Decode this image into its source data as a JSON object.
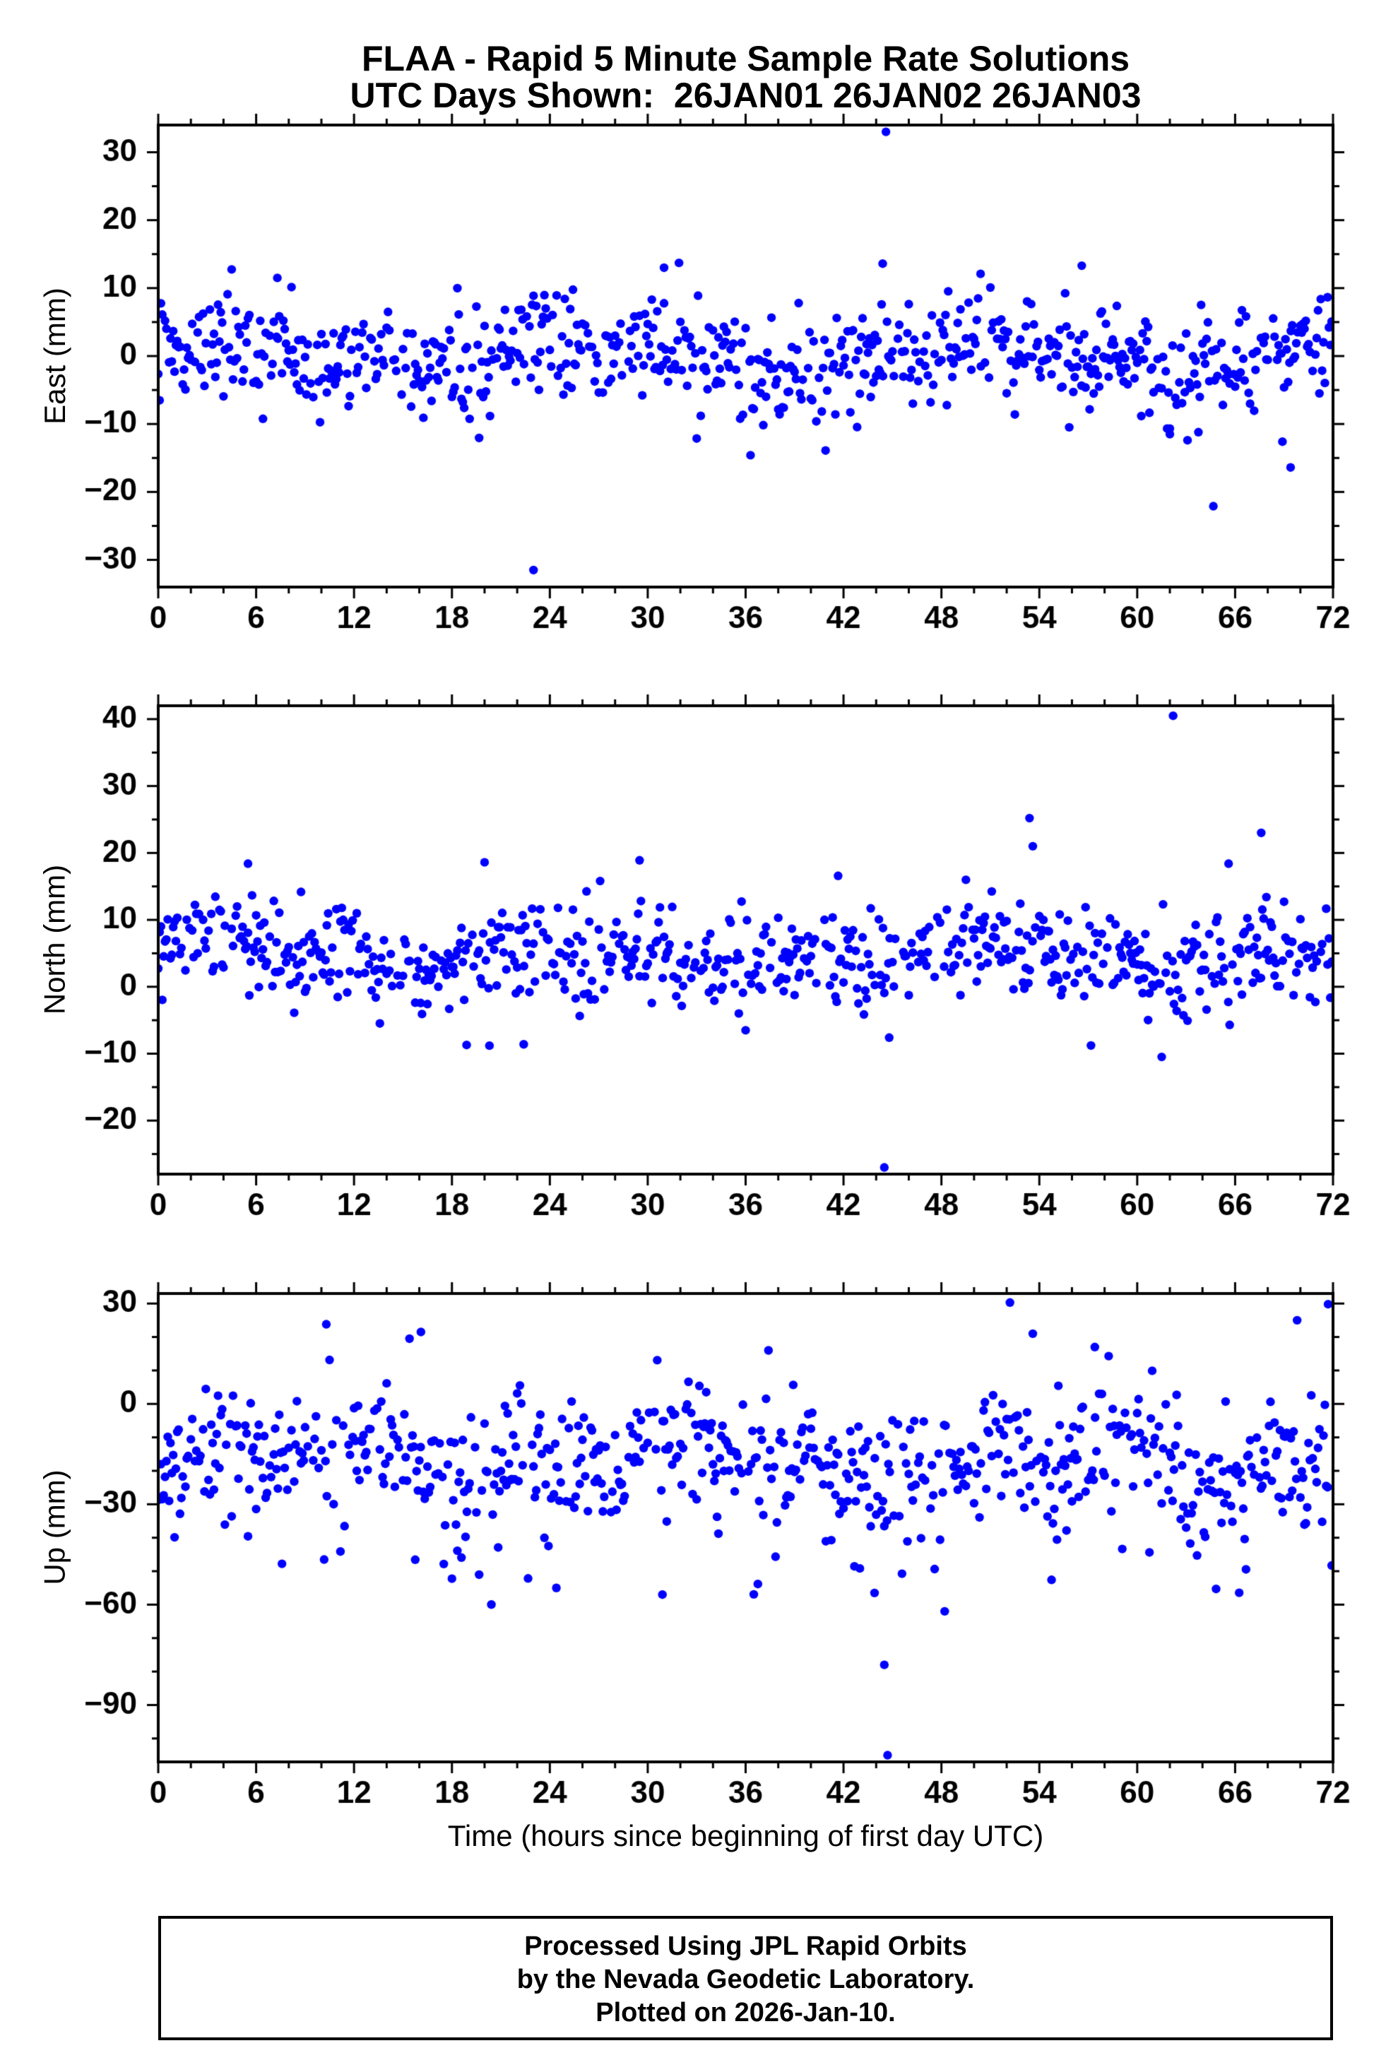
{
  "header": {
    "title_line1": "FLAA - Rapid 5 Minute Sample Rate Solutions",
    "title_line2": "UTC Days Shown:  26JAN01 26JAN02 26JAN03"
  },
  "xlabel": "Time (hours since beginning of first day UTC)",
  "footer": {
    "line1": "Processed Using JPL Rapid Orbits",
    "line2": "by the Nevada Geodetic Laboratory.",
    "line3": "Plotted on 2026-Jan-10."
  },
  "style": {
    "point_color": "#0000ff",
    "axis_color": "#000000",
    "background": "#ffffff"
  },
  "chart_data": [
    {
      "type": "scatter",
      "name": "east",
      "ylabel": "East (mm)",
      "xlabel": "",
      "xlim": [
        0,
        72
      ],
      "ylim": [
        -34,
        34
      ],
      "x_major_ticks": [
        0,
        6,
        12,
        18,
        24,
        30,
        36,
        42,
        48,
        54,
        60,
        66,
        72
      ],
      "x_minor_step": 2,
      "y_major_ticks": [
        -30,
        -20,
        -10,
        0,
        10,
        20,
        30
      ],
      "y_minor_step": 5,
      "grid": false,
      "legend": false,
      "points_model": {
        "seed": 101,
        "n": 864,
        "x_start": 0,
        "x_step": 0.0833333,
        "drop_prob": 0.2,
        "mean": 0,
        "std": 3.9,
        "wander_amp": 1.7,
        "tail_prob": 0.02,
        "tail_shift": 0,
        "tail_std": 7
      },
      "outliers": [
        [
          44.6,
          33.0
        ],
        [
          23.0,
          -31.5
        ],
        [
          44.4,
          13.6
        ],
        [
          31.0,
          13.0
        ],
        [
          56.6,
          13.3
        ],
        [
          36.3,
          -14.6
        ],
        [
          40.9,
          -13.9
        ],
        [
          69.4,
          -16.4
        ],
        [
          68.9,
          -12.6
        ],
        [
          62.0,
          -11.5
        ],
        [
          7.3,
          11.5
        ],
        [
          50.4,
          12.1
        ]
      ]
    },
    {
      "type": "scatter",
      "name": "north",
      "ylabel": "North (mm)",
      "xlabel": "",
      "xlim": [
        0,
        72
      ],
      "ylim": [
        -28,
        42
      ],
      "x_major_ticks": [
        0,
        6,
        12,
        18,
        24,
        30,
        36,
        42,
        48,
        54,
        60,
        66,
        72
      ],
      "x_minor_step": 2,
      "y_major_ticks": [
        -20,
        -10,
        0,
        10,
        20,
        30,
        40
      ],
      "y_minor_step": 5,
      "grid": false,
      "legend": false,
      "points_model": {
        "seed": 202,
        "n": 864,
        "x_start": 0,
        "x_step": 0.0833333,
        "drop_prob": 0.2,
        "mean": 4.6,
        "std": 3.7,
        "wander_amp": 1.8,
        "tail_prob": 0.03,
        "tail_shift": 2,
        "tail_std": 6
      },
      "outliers": [
        [
          62.2,
          40.5
        ],
        [
          44.5,
          -27.0
        ],
        [
          53.4,
          25.2
        ],
        [
          67.6,
          23.0
        ],
        [
          5.5,
          18.4
        ],
        [
          20.0,
          18.6
        ],
        [
          29.5,
          18.9
        ],
        [
          65.6,
          18.4
        ],
        [
          53.6,
          21.0
        ],
        [
          18.9,
          -8.7
        ],
        [
          20.3,
          -8.8
        ],
        [
          22.4,
          -8.6
        ],
        [
          44.8,
          -7.6
        ],
        [
          36.0,
          -6.5
        ]
      ]
    },
    {
      "type": "scatter",
      "name": "up",
      "ylabel": "Up (mm)",
      "xlabel": "Time (hours since beginning of first day UTC)",
      "xlim": [
        0,
        72
      ],
      "ylim": [
        -107,
        33
      ],
      "x_major_ticks": [
        0,
        6,
        12,
        18,
        24,
        30,
        36,
        42,
        48,
        54,
        60,
        66,
        72
      ],
      "x_minor_step": 2,
      "y_major_ticks": [
        -90,
        -60,
        -30,
        0,
        30
      ],
      "y_minor_step": 10,
      "grid": false,
      "legend": false,
      "points_model": {
        "seed": 303,
        "n": 864,
        "x_start": 0,
        "x_step": 0.0833333,
        "drop_prob": 0.2,
        "mean": -17,
        "std": 9.5,
        "wander_amp": 4.5,
        "tail_prob": 0.12,
        "tail_shift": -14,
        "tail_std": 11
      },
      "outliers": [
        [
          44.7,
          -105.0
        ],
        [
          44.5,
          -78.0
        ],
        [
          48.2,
          -62.0
        ],
        [
          43.9,
          -56.5
        ],
        [
          24.4,
          -55.0
        ],
        [
          30.9,
          -57.0
        ],
        [
          52.2,
          30.3
        ],
        [
          71.7,
          29.8
        ],
        [
          10.3,
          23.8
        ],
        [
          69.8,
          25.0
        ],
        [
          53.6,
          21.0
        ],
        [
          15.4,
          19.5
        ],
        [
          37.4,
          16.0
        ],
        [
          57.4,
          17.0
        ],
        [
          16.1,
          21.5
        ]
      ]
    }
  ]
}
